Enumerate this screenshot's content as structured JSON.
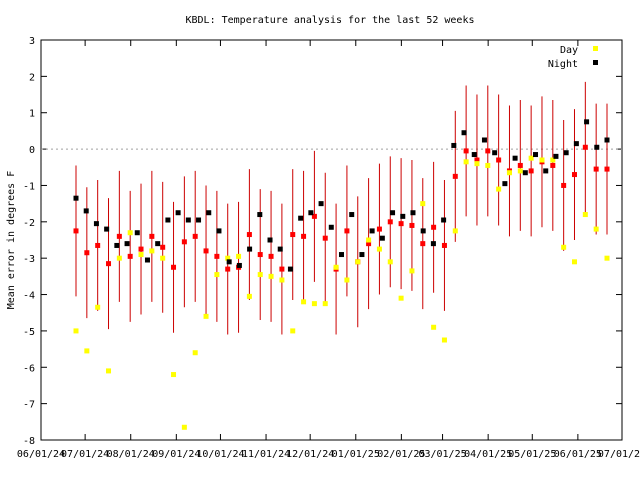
{
  "chart_data": {
    "type": "scatter",
    "title": "KBDL: Temperature analysis for the last 52 weeks",
    "xlabel": "",
    "ylabel": "Mean error in degrees F",
    "ylim": [
      -8,
      3
    ],
    "yticks": [
      "3",
      "2",
      "1",
      "0",
      "-1",
      "-2",
      "-3",
      "-4",
      "-5",
      "-6",
      "-7",
      "-8"
    ],
    "xlim": [
      "2024-06-01",
      "2025-07-01"
    ],
    "xticks": [
      {
        "date": "2024-06-01",
        "label": "06/01/24"
      },
      {
        "date": "2024-07-01",
        "label": "07/01/24"
      },
      {
        "date": "2024-08-01",
        "label": "08/01/24"
      },
      {
        "date": "2024-09-01",
        "label": "09/01/24"
      },
      {
        "date": "2024-10-01",
        "label": "10/01/24"
      },
      {
        "date": "2024-11-01",
        "label": "11/01/24"
      },
      {
        "date": "2024-12-01",
        "label": "12/01/24"
      },
      {
        "date": "2025-01-01",
        "label": "01/01/25"
      },
      {
        "date": "2025-02-01",
        "label": "02/01/25"
      },
      {
        "date": "2025-03-01",
        "label": "03/01/25"
      },
      {
        "date": "2025-04-01",
        "label": "04/01/25"
      },
      {
        "date": "2025-05-01",
        "label": "05/01/25"
      },
      {
        "date": "2025-06-01",
        "label": "06/01/25"
      },
      {
        "date": "2025-07-01",
        "label": "07/01/25"
      }
    ],
    "zero_line": true,
    "legend_position": "top-right",
    "colors": {
      "day": "#ffff00",
      "night": "#000000",
      "mean": "#ff0000",
      "errorbar": "#cc0000",
      "zero": "#a0a0a0"
    },
    "series": [
      {
        "name": "Day",
        "marker": "square",
        "color": "#ffff00",
        "values": [
          -5.0,
          -5.55,
          -4.35,
          -6.1,
          -3.0,
          -2.3,
          -2.9,
          -2.8,
          -3.0,
          -6.2,
          -7.65,
          -5.6,
          -4.6,
          -3.45,
          -3.0,
          -2.95,
          -4.05,
          -3.45,
          -3.5,
          -3.6,
          -5.0,
          -4.2,
          -4.25,
          -4.25,
          -3.25,
          -3.6,
          -3.1,
          -2.5,
          -2.75,
          -3.1,
          -4.1,
          -3.35,
          -1.5,
          -4.9,
          -5.25,
          -2.25,
          -0.35,
          -0.4,
          -0.45,
          -1.1,
          -0.65,
          -0.6,
          -0.25,
          -0.3,
          -0.3,
          -2.7,
          -3.1,
          -1.8,
          -2.2,
          -3.0
        ]
      },
      {
        "name": "Night",
        "marker": "square",
        "color": "#000000",
        "values": [
          -1.35,
          -1.7,
          -2.05,
          -2.2,
          -2.65,
          -2.6,
          -2.3,
          -3.05,
          -2.6,
          -1.95,
          -1.75,
          -1.95,
          -1.95,
          -1.75,
          -2.25,
          -3.1,
          -3.2,
          -2.75,
          -1.8,
          -2.5,
          -2.75,
          -3.3,
          -1.9,
          -1.75,
          -1.5,
          -2.15,
          -2.9,
          -1.8,
          -2.9,
          -2.25,
          -2.45,
          -1.75,
          -1.85,
          -1.75,
          -2.25,
          -2.6,
          -1.95,
          0.1,
          0.45,
          -0.15,
          0.25,
          -0.1,
          -0.95,
          -0.25,
          -0.65,
          -0.15,
          -0.6,
          -0.2,
          -0.1,
          0.15,
          0.75,
          0.05,
          0.25
        ]
      },
      {
        "name": "",
        "marker": "square",
        "color": "#ff0000",
        "values": [
          -2.25,
          -2.85,
          -2.65,
          -3.15,
          -2.4,
          -2.95,
          -2.75,
          -2.4,
          -2.7,
          -3.25,
          -2.55,
          -2.4,
          -2.8,
          -2.95,
          -3.3,
          -3.25,
          -2.35,
          -2.9,
          -2.95,
          -3.3,
          -2.35,
          -2.4,
          -1.85,
          -2.45,
          -3.3,
          -2.25,
          -3.1,
          -2.6,
          -2.2,
          -2.0,
          -2.05,
          -2.1,
          -2.6,
          -2.15,
          -2.65,
          -0.75,
          -0.05,
          -0.3,
          -0.05,
          -0.3,
          -0.6,
          -0.45,
          -0.6,
          -0.35,
          -0.45,
          -1.0,
          -0.7,
          0.05,
          -0.55,
          -0.55
        ]
      }
    ],
    "x_index_range": [
      0,
      52
    ],
    "errorbar_half_width": 1.8
  }
}
